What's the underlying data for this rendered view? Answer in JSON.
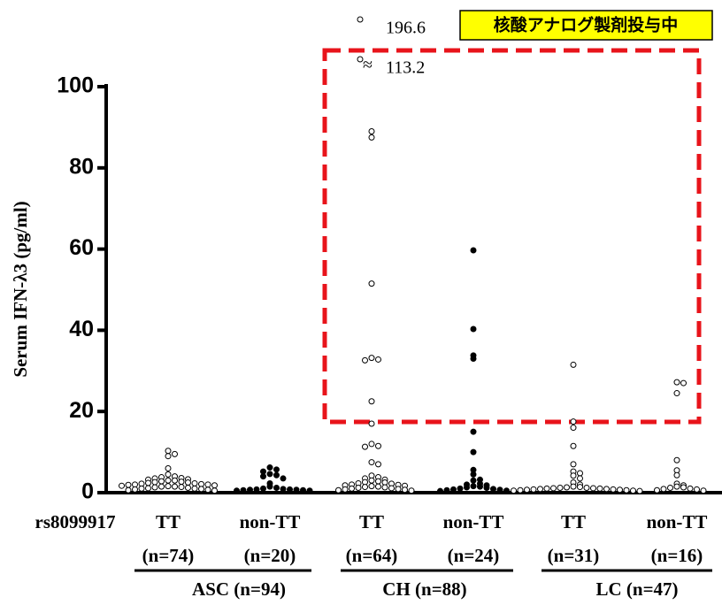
{
  "chart_data": {
    "type": "scatter",
    "y_label": "Serum IFN-λ3 (pg/ml)",
    "x_label": "rs8099917",
    "ylim": [
      0,
      100
    ],
    "yticks": [
      0,
      20,
      40,
      60,
      80,
      100
    ],
    "categories": [
      "TT",
      "non-TT",
      "TT",
      "non-TT",
      "TT",
      "non-TT"
    ],
    "n_labels": [
      "(n=74)",
      "(n=20)",
      "(n=64)",
      "(n=24)",
      "(n=31)",
      "(n=16)"
    ],
    "groups": [
      "ASC (n=94)",
      "CH (n=88)",
      "LC (n=47)"
    ],
    "highlight_label": "核酸アナログ製剤投与中",
    "off_scale_points": [
      {
        "value": 196.6,
        "label": "196.6"
      },
      {
        "value": 113.2,
        "label": "113.2"
      }
    ],
    "series": [
      {
        "filled": false,
        "values": [
          10.3,
          9.5,
          9.0,
          6.0,
          4.5,
          4.0,
          3.8,
          3.6,
          3.5,
          3.3,
          3.2,
          3.0,
          3.0,
          2.8,
          2.7,
          2.6,
          2.5,
          2.4,
          2.3,
          2.2,
          2.1,
          2.0,
          2.0,
          1.9,
          1.8,
          1.7,
          1.6,
          1.5,
          1.5,
          1.4,
          1.3,
          1.2,
          1.1,
          1.0,
          1.0,
          0.9,
          0.8,
          0.7,
          0.6,
          0.5
        ]
      },
      {
        "filled": true,
        "values": [
          6.2,
          5.7,
          5.2,
          4.6,
          4.3,
          4.0,
          3.5,
          2.3,
          1.5,
          1.2,
          1.0,
          0.9,
          0.8,
          0.8,
          0.7,
          0.7,
          0.6,
          0.6,
          0.5,
          0.5
        ]
      },
      {
        "filled": false,
        "values": [
          89,
          87.5,
          51.5,
          33.2,
          32.8,
          32.6,
          22.5,
          17,
          12,
          11.5,
          11.3,
          7.5,
          7,
          4.2,
          3.8,
          3.5,
          3.2,
          3,
          2.8,
          2.6,
          2.5,
          2.3,
          2.2,
          2,
          1.9,
          1.8,
          1.7,
          1.6,
          1.5,
          1.4,
          1.3,
          1.2,
          1.1,
          1,
          0.9,
          0.8,
          0.7,
          0.6,
          0.5
        ]
      },
      {
        "filled": true,
        "values": [
          59.7,
          40.3,
          33.8,
          33.0,
          15,
          10,
          5.6,
          4.5,
          3.2,
          3.0,
          2.2,
          2.0,
          1.8,
          1.6,
          1.5,
          1.3,
          1.2,
          1.0,
          0.9,
          0.8,
          0.7,
          0.6,
          0.5,
          0.4
        ]
      },
      {
        "filled": false,
        "values": [
          31.5,
          17.5,
          16,
          11.5,
          7,
          5.2,
          4.8,
          4.2,
          3.5,
          2.5,
          2,
          1.5,
          1.4,
          1.3,
          1.2,
          1.2,
          1.1,
          1.1,
          1,
          1,
          0.9,
          0.9,
          0.8,
          0.8,
          0.7,
          0.7,
          0.6,
          0.6,
          0.5,
          0.5,
          0.4
        ]
      },
      {
        "filled": false,
        "values": [
          27.2,
          27,
          24.5,
          8,
          5.5,
          4.3,
          2.2,
          1.8,
          1.5,
          1.3,
          1.2,
          1.0,
          0.9,
          0.8,
          0.6,
          0.5
        ]
      }
    ]
  }
}
